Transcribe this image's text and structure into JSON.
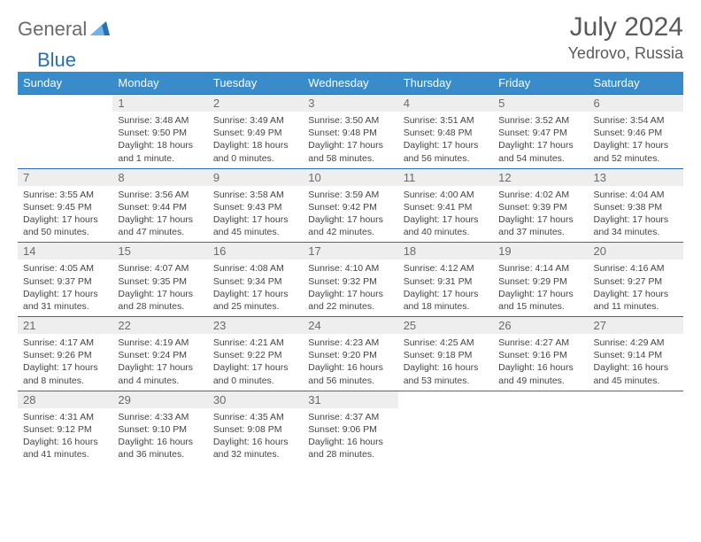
{
  "brand": {
    "part1": "General",
    "part2": "Blue"
  },
  "title": "July 2024",
  "location": "Yedrovo, Russia",
  "colors": {
    "header_bg": "#3a8bc9",
    "rule": "#2a6fb5",
    "daynum_bg": "#eeeeee",
    "text": "#444444",
    "brand_gray": "#6b6b6b",
    "brand_blue": "#2a6fb5"
  },
  "dow": [
    "Sunday",
    "Monday",
    "Tuesday",
    "Wednesday",
    "Thursday",
    "Friday",
    "Saturday"
  ],
  "weeks": [
    [
      null,
      {
        "n": "1",
        "sr": "3:48 AM",
        "ss": "9:50 PM",
        "dl": "18 hours and 1 minute."
      },
      {
        "n": "2",
        "sr": "3:49 AM",
        "ss": "9:49 PM",
        "dl": "18 hours and 0 minutes."
      },
      {
        "n": "3",
        "sr": "3:50 AM",
        "ss": "9:48 PM",
        "dl": "17 hours and 58 minutes."
      },
      {
        "n": "4",
        "sr": "3:51 AM",
        "ss": "9:48 PM",
        "dl": "17 hours and 56 minutes."
      },
      {
        "n": "5",
        "sr": "3:52 AM",
        "ss": "9:47 PM",
        "dl": "17 hours and 54 minutes."
      },
      {
        "n": "6",
        "sr": "3:54 AM",
        "ss": "9:46 PM",
        "dl": "17 hours and 52 minutes."
      }
    ],
    [
      {
        "n": "7",
        "sr": "3:55 AM",
        "ss": "9:45 PM",
        "dl": "17 hours and 50 minutes."
      },
      {
        "n": "8",
        "sr": "3:56 AM",
        "ss": "9:44 PM",
        "dl": "17 hours and 47 minutes."
      },
      {
        "n": "9",
        "sr": "3:58 AM",
        "ss": "9:43 PM",
        "dl": "17 hours and 45 minutes."
      },
      {
        "n": "10",
        "sr": "3:59 AM",
        "ss": "9:42 PM",
        "dl": "17 hours and 42 minutes."
      },
      {
        "n": "11",
        "sr": "4:00 AM",
        "ss": "9:41 PM",
        "dl": "17 hours and 40 minutes."
      },
      {
        "n": "12",
        "sr": "4:02 AM",
        "ss": "9:39 PM",
        "dl": "17 hours and 37 minutes."
      },
      {
        "n": "13",
        "sr": "4:04 AM",
        "ss": "9:38 PM",
        "dl": "17 hours and 34 minutes."
      }
    ],
    [
      {
        "n": "14",
        "sr": "4:05 AM",
        "ss": "9:37 PM",
        "dl": "17 hours and 31 minutes."
      },
      {
        "n": "15",
        "sr": "4:07 AM",
        "ss": "9:35 PM",
        "dl": "17 hours and 28 minutes."
      },
      {
        "n": "16",
        "sr": "4:08 AM",
        "ss": "9:34 PM",
        "dl": "17 hours and 25 minutes."
      },
      {
        "n": "17",
        "sr": "4:10 AM",
        "ss": "9:32 PM",
        "dl": "17 hours and 22 minutes."
      },
      {
        "n": "18",
        "sr": "4:12 AM",
        "ss": "9:31 PM",
        "dl": "17 hours and 18 minutes."
      },
      {
        "n": "19",
        "sr": "4:14 AM",
        "ss": "9:29 PM",
        "dl": "17 hours and 15 minutes."
      },
      {
        "n": "20",
        "sr": "4:16 AM",
        "ss": "9:27 PM",
        "dl": "17 hours and 11 minutes."
      }
    ],
    [
      {
        "n": "21",
        "sr": "4:17 AM",
        "ss": "9:26 PM",
        "dl": "17 hours and 8 minutes."
      },
      {
        "n": "22",
        "sr": "4:19 AM",
        "ss": "9:24 PM",
        "dl": "17 hours and 4 minutes."
      },
      {
        "n": "23",
        "sr": "4:21 AM",
        "ss": "9:22 PM",
        "dl": "17 hours and 0 minutes."
      },
      {
        "n": "24",
        "sr": "4:23 AM",
        "ss": "9:20 PM",
        "dl": "16 hours and 56 minutes."
      },
      {
        "n": "25",
        "sr": "4:25 AM",
        "ss": "9:18 PM",
        "dl": "16 hours and 53 minutes."
      },
      {
        "n": "26",
        "sr": "4:27 AM",
        "ss": "9:16 PM",
        "dl": "16 hours and 49 minutes."
      },
      {
        "n": "27",
        "sr": "4:29 AM",
        "ss": "9:14 PM",
        "dl": "16 hours and 45 minutes."
      }
    ],
    [
      {
        "n": "28",
        "sr": "4:31 AM",
        "ss": "9:12 PM",
        "dl": "16 hours and 41 minutes."
      },
      {
        "n": "29",
        "sr": "4:33 AM",
        "ss": "9:10 PM",
        "dl": "16 hours and 36 minutes."
      },
      {
        "n": "30",
        "sr": "4:35 AM",
        "ss": "9:08 PM",
        "dl": "16 hours and 32 minutes."
      },
      {
        "n": "31",
        "sr": "4:37 AM",
        "ss": "9:06 PM",
        "dl": "16 hours and 28 minutes."
      },
      null,
      null,
      null
    ]
  ],
  "labels": {
    "sunrise": "Sunrise:",
    "sunset": "Sunset:",
    "daylight": "Daylight:"
  }
}
